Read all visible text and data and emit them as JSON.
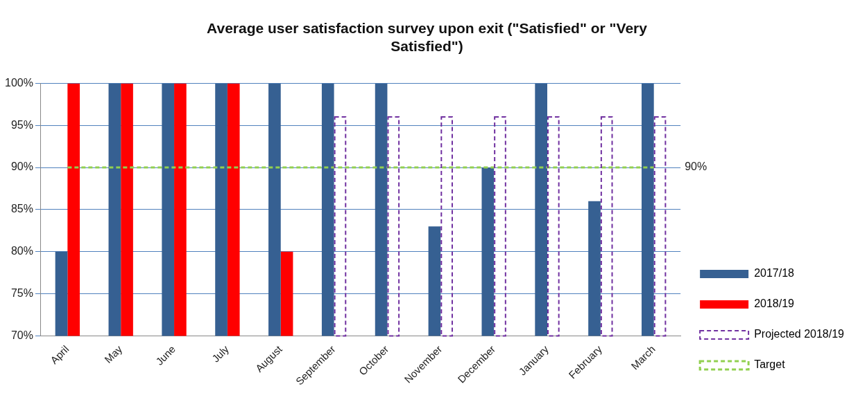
{
  "chart_data": {
    "type": "bar",
    "title": "Average user satisfaction survey upon exit (\"Satisfied\" or \"Very Satisfied\")",
    "categories": [
      "April",
      "May",
      "June",
      "July",
      "August",
      "September",
      "October",
      "November",
      "December",
      "January",
      "February",
      "March"
    ],
    "series": [
      {
        "name": "2017/18",
        "color": "#366092",
        "values": [
          80,
          100,
          100,
          100,
          100,
          100,
          100,
          83,
          90,
          100,
          86,
          100
        ]
      },
      {
        "name": "2018/19",
        "color": "#ff0000",
        "values": [
          100,
          100,
          100,
          100,
          80,
          null,
          null,
          null,
          null,
          null,
          null,
          null
        ]
      },
      {
        "name": "Projected 2018/19",
        "color": "#7030a0",
        "line_style": "dashed",
        "values": [
          null,
          null,
          null,
          null,
          null,
          96,
          96,
          96,
          96,
          96,
          96,
          96
        ]
      },
      {
        "name": "Target",
        "type": "line",
        "color": "#92d050",
        "line_style": "dashed",
        "marker": "none",
        "values": [
          90,
          90,
          90,
          90,
          90,
          90,
          90,
          90,
          90,
          90,
          90,
          90
        ]
      }
    ],
    "ylim": [
      70,
      100
    ],
    "yticks": [
      {
        "value": 70,
        "label": "70%"
      },
      {
        "value": 75,
        "label": "75%"
      },
      {
        "value": 80,
        "label": "80%"
      },
      {
        "value": 85,
        "label": "85%"
      },
      {
        "value": 90,
        "label": "90%"
      },
      {
        "value": 95,
        "label": "95%"
      },
      {
        "value": 100,
        "label": "100%"
      }
    ],
    "annotations": [
      "90%"
    ],
    "grid": "y",
    "legend": "right"
  }
}
